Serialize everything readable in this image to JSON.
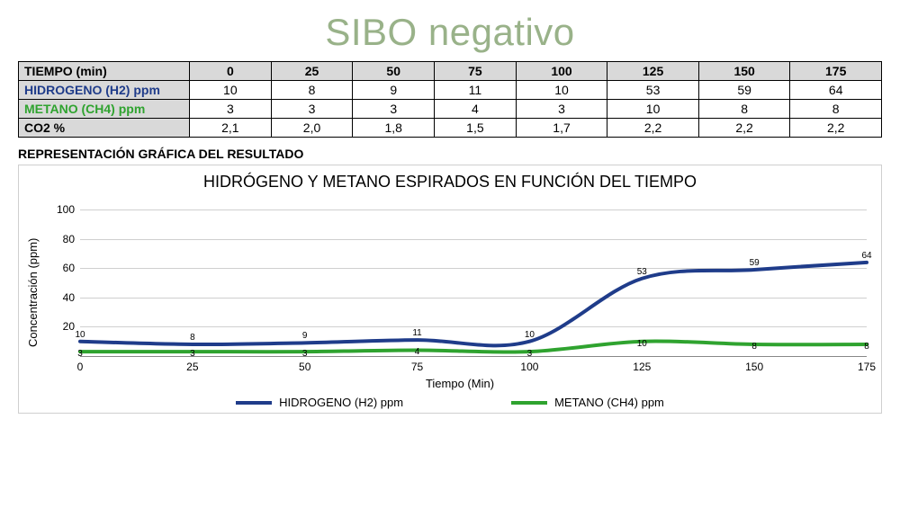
{
  "title": "SIBO negativo",
  "title_color": "#99b289",
  "title_fontsize": 42,
  "table": {
    "header_label": "TIEMPO (min)",
    "time_points": [
      "0",
      "25",
      "50",
      "75",
      "100",
      "125",
      "150",
      "175"
    ],
    "rows": [
      {
        "label": "HIDROGENO (H2) ppm",
        "label_color": "#1f3c8a",
        "values": [
          "10",
          "8",
          "9",
          "11",
          "10",
          "53",
          "59",
          "64"
        ],
        "header_bg": "#d9d9d9"
      },
      {
        "label": "METANO (CH4) ppm",
        "label_color": "#2fa32f",
        "values": [
          "3",
          "3",
          "3",
          "4",
          "3",
          "10",
          "8",
          "8"
        ],
        "header_bg": "#d9d9d9"
      },
      {
        "label": "CO2 %",
        "label_color": "#000000",
        "values": [
          "2,1",
          "2,0",
          "1,8",
          "1,5",
          "1,7",
          "2,2",
          "2,2",
          "2,2"
        ],
        "header_bg": "#d9d9d9"
      }
    ],
    "header_bg": "#d9d9d9",
    "border_color": "#000000",
    "font_size": 14
  },
  "section_label": "REPRESENTACIÓN GRÁFICA DEL RESULTADO",
  "chart": {
    "type": "line",
    "title": "HIDRÓGENO Y METANO ESPIRADOS EN FUNCIÓN DEL TIEMPO",
    "title_fontsize": 18,
    "xlabel": "Tiempo (Min)",
    "ylabel": "Concentración (ppm)",
    "label_fontsize": 13,
    "xlim": [
      0,
      175
    ],
    "ylim": [
      0,
      110
    ],
    "ytick_step": 20,
    "yticks": [
      20,
      40,
      60,
      80,
      100
    ],
    "xticks": [
      0,
      25,
      50,
      75,
      100,
      125,
      150,
      175
    ],
    "background_color": "#ffffff",
    "grid_color": "#cfcfcf",
    "axis_color": "#888888",
    "box_border_color": "#cfcfcf",
    "line_width": 4,
    "series": [
      {
        "name": "HIDROGENO (H2) ppm",
        "color": "#1f3c8a",
        "x": [
          0,
          25,
          50,
          75,
          100,
          125,
          150,
          175
        ],
        "y": [
          10,
          8,
          9,
          11,
          10,
          53,
          59,
          64
        ],
        "labels": [
          "10",
          "8",
          "9",
          "11",
          "10",
          "53",
          "59",
          "64"
        ]
      },
      {
        "name": "METANO (CH4) ppm",
        "color": "#2fa32f",
        "x": [
          0,
          25,
          50,
          75,
          100,
          125,
          150,
          175
        ],
        "y": [
          3,
          3,
          3,
          4,
          3,
          10,
          8,
          8
        ],
        "labels": [
          "3",
          "3",
          "3",
          "4",
          "3",
          "10",
          "8",
          "8"
        ]
      }
    ],
    "legend": [
      {
        "label": "HIDROGENO (H2) ppm",
        "color": "#1f3c8a"
      },
      {
        "label": "METANO (CH4) ppm",
        "color": "#2fa32f"
      }
    ]
  }
}
